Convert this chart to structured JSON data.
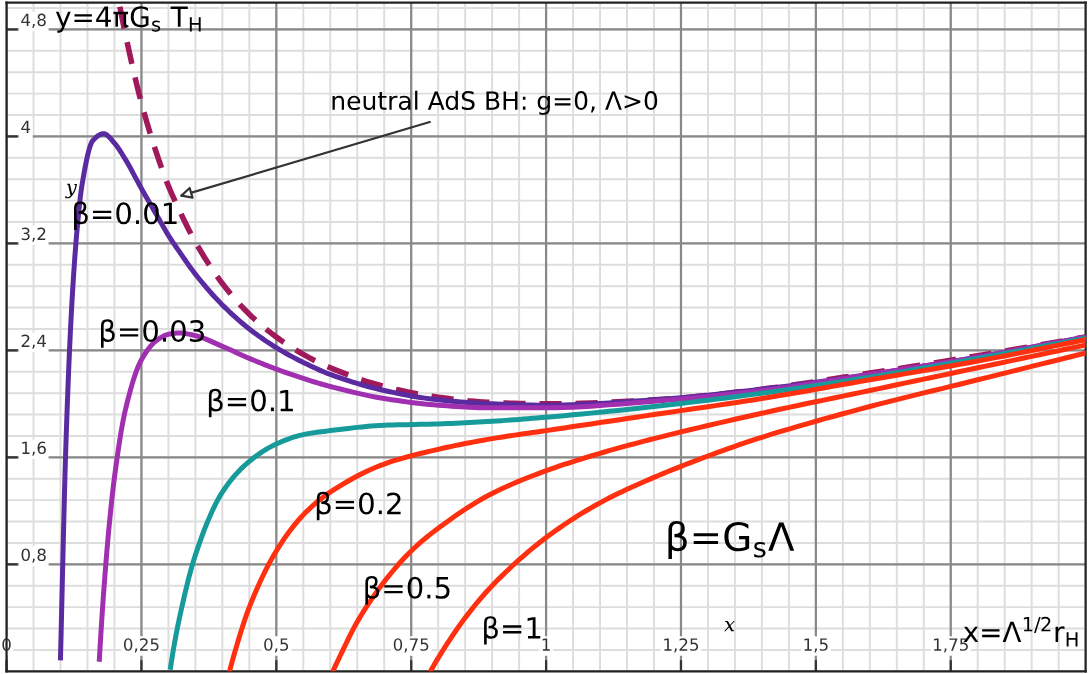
{
  "chart_data": {
    "type": "line",
    "xlabel": "x=Λ$^{1/2}$r$_{H}$",
    "ylabel": "y=4πG$_{s}$ T$_{H}$",
    "xlim": [
      0,
      2
    ],
    "ylim": [
      0,
      5
    ],
    "xticks": [
      {
        "value": 0,
        "label": "0"
      },
      {
        "value": 0.25,
        "label": "0,25"
      },
      {
        "value": 0.5,
        "label": "0,5"
      },
      {
        "value": 0.75,
        "label": "0,75"
      },
      {
        "value": 1,
        "label": "1"
      },
      {
        "value": 1.25,
        "label": "1,25"
      },
      {
        "value": 1.5,
        "label": "1,5"
      },
      {
        "value": 1.75,
        "label": "1,75"
      }
    ],
    "yticks": [
      {
        "value": 0.8,
        "label": "0,8"
      },
      {
        "value": 1.6,
        "label": "1,6"
      },
      {
        "value": 2.4,
        "label": "2,4"
      },
      {
        "value": 3.2,
        "label": "3,2"
      },
      {
        "value": 4,
        "label": "4"
      },
      {
        "value": 4.8,
        "label": "4,8"
      }
    ],
    "grid": true,
    "marker": "none",
    "annotations": [
      {
        "text": "neutral AdS BH: g=0, Λ>0",
        "x": 0.31,
        "y": 3.54
      },
      "β=G$_{s}$Λ",
      "y",
      "x"
    ],
    "series": [
      {
        "color": "#a0195a",
        "line_style": "dashed",
        "x": [
          0.21,
          0.22,
          0.25,
          0.28,
          0.3,
          0.32,
          0.35,
          0.4,
          0.45,
          0.5,
          0.55,
          0.6,
          0.7,
          0.8,
          0.9,
          1.0,
          1.2,
          1.4,
          1.6,
          1.8,
          2.0
        ],
        "values": [
          4.97,
          4.77,
          4.25,
          3.85,
          3.63,
          3.45,
          3.21,
          2.9,
          2.67,
          2.5,
          2.37,
          2.27,
          2.13,
          2.05,
          2.01,
          2.0,
          2.03,
          2.11,
          2.23,
          2.36,
          2.5
        ]
      },
      {
        "name": "β=0.01",
        "color": "#5a2aa0",
        "line_style": "solid",
        "x": [
          0.1,
          0.11,
          0.12,
          0.13,
          0.14,
          0.16,
          0.18,
          0.2,
          0.22,
          0.25,
          0.28,
          0.3,
          0.32,
          0.35,
          0.4,
          0.45,
          0.5,
          0.55,
          0.6,
          0.7,
          0.8,
          0.9,
          1.0,
          1.2,
          1.4,
          1.6,
          1.8,
          2.0
        ],
        "values": [
          0.1,
          1.69,
          2.67,
          3.27,
          3.64,
          3.97,
          4.02,
          3.95,
          3.83,
          3.61,
          3.4,
          3.26,
          3.14,
          2.97,
          2.74,
          2.56,
          2.42,
          2.31,
          2.22,
          2.1,
          2.03,
          2.0,
          1.99,
          2.03,
          2.11,
          2.22,
          2.35,
          2.5
        ]
      },
      {
        "name": "β=0.03",
        "color": "#a030b0",
        "line_style": "solid",
        "x": [
          0.172,
          0.175,
          0.18,
          0.19,
          0.2,
          0.22,
          0.25,
          0.28,
          0.3,
          0.32,
          0.35,
          0.4,
          0.45,
          0.5,
          0.55,
          0.6,
          0.7,
          0.8,
          0.9,
          1.0,
          1.2,
          1.4,
          1.6,
          1.8,
          2.0
        ],
        "values": [
          0.09,
          0.29,
          0.59,
          1.08,
          1.45,
          1.95,
          2.33,
          2.48,
          2.52,
          2.53,
          2.51,
          2.43,
          2.34,
          2.26,
          2.19,
          2.13,
          2.04,
          1.99,
          1.97,
          1.97,
          2.02,
          2.1,
          2.22,
          2.35,
          2.5
        ]
      },
      {
        "name": "β=0.1",
        "color": "#169a9a",
        "line_style": "solid",
        "x": [
          0.304,
          0.31,
          0.32,
          0.35,
          0.4,
          0.45,
          0.5,
          0.55,
          0.6,
          0.7,
          0.8,
          0.9,
          1.0,
          1.2,
          1.4,
          1.6,
          1.8,
          2.0
        ],
        "values": [
          0.03,
          0.18,
          0.39,
          0.87,
          1.34,
          1.57,
          1.7,
          1.77,
          1.8,
          1.84,
          1.85,
          1.87,
          1.9,
          1.98,
          2.08,
          2.2,
          2.34,
          2.49
        ]
      },
      {
        "name": "β=0.2",
        "color": "#ff3010",
        "line_style": "solid",
        "x": [
          0.414,
          0.42,
          0.45,
          0.5,
          0.55,
          0.6,
          0.7,
          0.8,
          0.9,
          1.0,
          1.2,
          1.4,
          1.6,
          1.8,
          2.0
        ],
        "values": [
          0.01,
          0.1,
          0.48,
          0.9,
          1.17,
          1.34,
          1.55,
          1.66,
          1.74,
          1.8,
          1.92,
          2.04,
          2.18,
          2.32,
          2.48
        ]
      },
      {
        "name": "β=0.5",
        "color": "#ff3010",
        "line_style": "solid",
        "x": [
          0.606,
          0.62,
          0.65,
          0.7,
          0.75,
          0.8,
          0.9,
          1.0,
          1.1,
          1.2,
          1.4,
          1.6,
          1.8,
          2.0
        ],
        "values": [
          0.01,
          0.13,
          0.37,
          0.67,
          0.9,
          1.07,
          1.33,
          1.5,
          1.63,
          1.74,
          1.93,
          2.1,
          2.27,
          2.44
        ]
      },
      {
        "name": "β=1",
        "color": "#ff3010",
        "line_style": "solid",
        "x": [
          0.787,
          0.8,
          0.85,
          0.9,
          1.0,
          1.1,
          1.2,
          1.3,
          1.4,
          1.6,
          1.8,
          2.0
        ],
        "values": [
          0.01,
          0.1,
          0.4,
          0.64,
          1.0,
          1.26,
          1.45,
          1.61,
          1.75,
          1.98,
          2.18,
          2.38
        ]
      }
    ]
  }
}
